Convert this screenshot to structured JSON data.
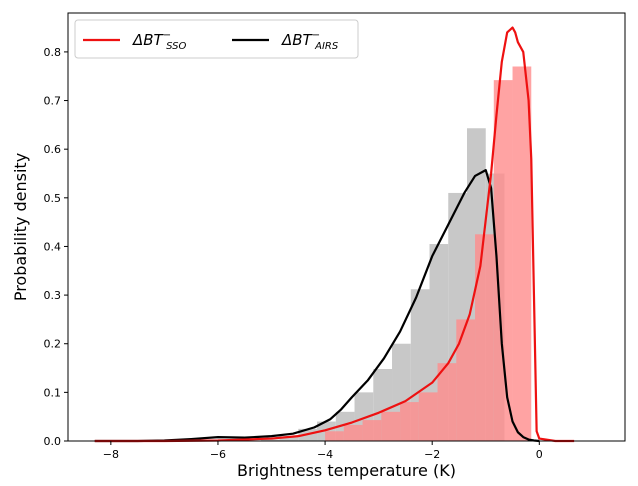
{
  "chart_data": {
    "type": "area",
    "xlabel": "Brightness temperature (K)",
    "ylabel": "Probability density",
    "xlim": [
      -8.8,
      1.6
    ],
    "ylim": [
      0,
      0.88
    ],
    "xticks": [
      -8,
      -6,
      -4,
      -2,
      0
    ],
    "xtick_labels": [
      "−8",
      "−6",
      "−4",
      "−2",
      "0"
    ],
    "yticks": [
      0.0,
      0.1,
      0.2,
      0.3,
      0.4,
      0.5,
      0.6,
      0.7,
      0.8
    ],
    "ytick_labels": [
      "0.0",
      "0.1",
      "0.2",
      "0.3",
      "0.4",
      "0.5",
      "0.6",
      "0.7",
      "0.8"
    ],
    "grid": false,
    "legend_position": "top-left",
    "legend": [
      {
        "base": "ΔBT",
        "sup": "−",
        "sub": "SSO",
        "color": "#ee1111"
      },
      {
        "base": "ΔBT",
        "sup": "−",
        "sub": "AIRS",
        "color": "#000000"
      }
    ],
    "histograms": [
      {
        "series_ref": "AIRS",
        "color": "#c8c8c8",
        "bin_edges": [
          -5.2,
          -4.85,
          -4.5,
          -4.15,
          -3.8,
          -3.45,
          -3.1,
          -2.75,
          -2.4,
          -2.05,
          -1.7,
          -1.35,
          -1.0,
          -0.65
        ],
        "values": [
          0.003,
          0.01,
          0.025,
          0.04,
          0.06,
          0.1,
          0.148,
          0.2,
          0.312,
          0.405,
          0.51,
          0.643,
          0.55
        ]
      },
      {
        "series_ref": "SSO",
        "color": "#ff8c8c",
        "bin_edges": [
          -4.0,
          -3.65,
          -3.3,
          -2.95,
          -2.6,
          -2.25,
          -1.9,
          -1.55,
          -1.2,
          -0.85,
          -0.5,
          -0.15
        ],
        "values": [
          0.02,
          0.033,
          0.043,
          0.06,
          0.08,
          0.1,
          0.16,
          0.25,
          0.425,
          0.742,
          0.77
        ]
      }
    ],
    "series": [
      {
        "ref": "AIRS",
        "color": "#000000",
        "x": [
          -8.3,
          -7.5,
          -7.0,
          -6.5,
          -6.0,
          -5.5,
          -5.0,
          -4.6,
          -4.2,
          -3.9,
          -3.7,
          -3.5,
          -3.2,
          -2.9,
          -2.6,
          -2.3,
          -2.0,
          -1.7,
          -1.4,
          -1.2,
          -1.0,
          -0.9,
          -0.8,
          -0.7,
          -0.6,
          -0.5,
          -0.4,
          -0.3,
          -0.2,
          -0.1,
          0.0
        ],
        "y": [
          0.0,
          0.0,
          0.001,
          0.004,
          0.008,
          0.007,
          0.01,
          0.015,
          0.028,
          0.045,
          0.065,
          0.09,
          0.125,
          0.17,
          0.225,
          0.295,
          0.38,
          0.445,
          0.51,
          0.545,
          0.557,
          0.52,
          0.38,
          0.2,
          0.09,
          0.04,
          0.018,
          0.008,
          0.003,
          0.001,
          0.0
        ]
      },
      {
        "ref": "SSO",
        "color": "#ee1111",
        "x": [
          -8.3,
          -7.0,
          -6.0,
          -5.0,
          -4.5,
          -4.0,
          -3.5,
          -3.0,
          -2.5,
          -2.0,
          -1.7,
          -1.5,
          -1.3,
          -1.1,
          -0.9,
          -0.8,
          -0.7,
          -0.6,
          -0.5,
          -0.45,
          -0.4,
          -0.3,
          -0.2,
          -0.15,
          -0.1,
          -0.05,
          0.0,
          0.3,
          0.65
        ],
        "y": [
          0.0,
          0.0,
          0.001,
          0.005,
          0.01,
          0.022,
          0.038,
          0.058,
          0.082,
          0.12,
          0.16,
          0.2,
          0.26,
          0.36,
          0.55,
          0.67,
          0.78,
          0.84,
          0.85,
          0.84,
          0.82,
          0.8,
          0.7,
          0.58,
          0.3,
          0.02,
          0.005,
          0.0,
          0.0
        ]
      }
    ]
  }
}
